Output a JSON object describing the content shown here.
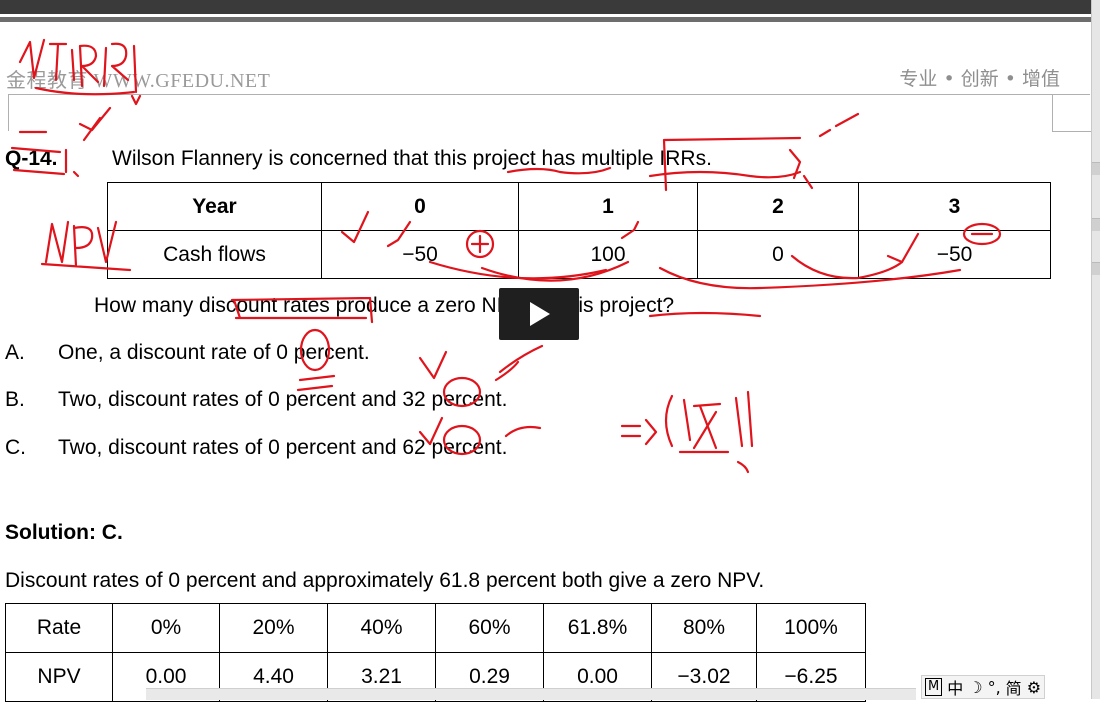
{
  "header": {
    "left": "金程教育 WWW.GFEDU.NET",
    "right": "专业 • 创新 • 增值"
  },
  "question": {
    "number": "Q-14.",
    "text": "Wilson Flannery is concerned that this project has multiple IRRs."
  },
  "cashflow_table": {
    "header": [
      "Year",
      "0",
      "1",
      "2",
      "3"
    ],
    "row": [
      "Cash flows",
      "−50",
      "100",
      "0",
      "−50"
    ]
  },
  "prompt": "How many discount rates produce a zero NPV for this project?",
  "options": [
    {
      "letter": "A.",
      "text": "One, a discount rate of 0 percent."
    },
    {
      "letter": "B.",
      "text": "Two, discount rates of 0 percent and 32 percent."
    },
    {
      "letter": "C.",
      "text": "Two, discount rates of 0 percent and 62 percent."
    }
  ],
  "solution": "Solution: C.",
  "explanation": "Discount rates of 0 percent and approximately 61.8 percent both give a zero NPV.",
  "npv_table": {
    "header": [
      "Rate",
      "0%",
      "20%",
      "40%",
      "60%",
      "61.8%",
      "80%",
      "100%"
    ],
    "row": [
      "NPV",
      "0.00",
      "4.40",
      "3.21",
      "0.29",
      "0.00",
      "−3.02",
      "−6.25"
    ]
  },
  "annotations": {
    "top_left": "NPV IRR",
    "left_side": "NPV",
    "plus_sign": "+",
    "side_note": "=>(双)"
  },
  "ime": {
    "mode": "M",
    "lang": "中",
    "moon": "☽",
    "punct": "°,",
    "simp": "简",
    "settings_icon": "⚙"
  },
  "colors": {
    "ink": "#e0141c",
    "header_text": "#9a9a9a"
  }
}
